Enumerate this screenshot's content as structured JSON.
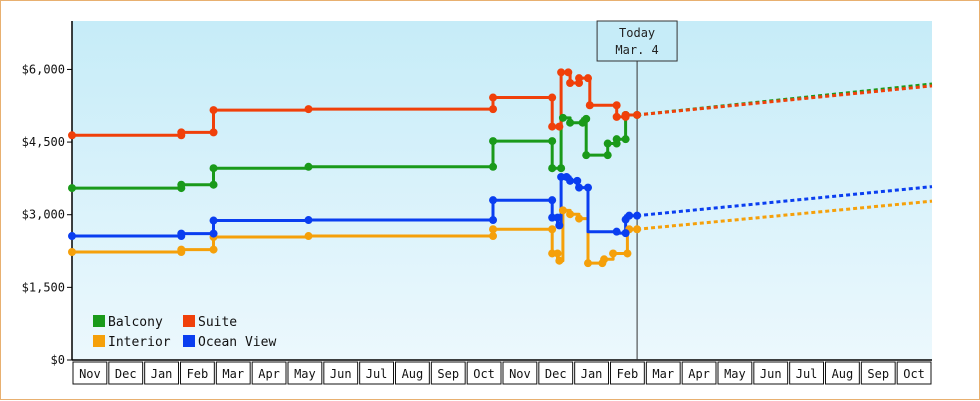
{
  "chart_data": {
    "type": "line",
    "title": "",
    "xlabel": "",
    "ylabel": "",
    "ylim": [
      0,
      7000
    ],
    "y_ticks": [
      {
        "value": 0,
        "label": "$0"
      },
      {
        "value": 1500,
        "label": "$1,500"
      },
      {
        "value": 3000,
        "label": "$3,000"
      },
      {
        "value": 4500,
        "label": "$4,500"
      },
      {
        "value": 6000,
        "label": "$6,000"
      }
    ],
    "x_axis": {
      "unit": "months since Nov of first year",
      "range": [
        0,
        24
      ],
      "labels": [
        "Nov",
        "Dec",
        "Jan",
        "Feb",
        "Mar",
        "Apr",
        "May",
        "Jun",
        "Jul",
        "Aug",
        "Sep",
        "Oct",
        "Nov",
        "Dec",
        "Jan",
        "Feb",
        "Mar",
        "Apr",
        "May",
        "Jun",
        "Jul",
        "Aug",
        "Sep",
        "Oct"
      ]
    },
    "today": {
      "line1": "Today",
      "line2": "Mar. 4",
      "x": 15.77
    },
    "legend": {
      "placement": "bottom-left"
    },
    "series": [
      {
        "name": "Balcony",
        "color": "#1a9a1a",
        "points": [
          [
            0,
            3550
          ],
          [
            3.05,
            3550
          ],
          [
            3.05,
            3620
          ],
          [
            3.95,
            3620
          ],
          [
            3.95,
            3960
          ],
          [
            6.6,
            3960
          ],
          [
            6.6,
            3990
          ],
          [
            11.75,
            3990
          ],
          [
            11.75,
            4520
          ],
          [
            13.4,
            4520
          ],
          [
            13.4,
            3960
          ],
          [
            13.65,
            3960
          ],
          [
            13.65,
            5000
          ],
          [
            13.9,
            5000
          ],
          [
            13.9,
            4900
          ],
          [
            14.25,
            4900
          ],
          [
            14.25,
            4980
          ],
          [
            14.35,
            4980
          ],
          [
            14.35,
            4230
          ],
          [
            14.95,
            4230
          ],
          [
            14.95,
            4470
          ],
          [
            15.2,
            4470
          ],
          [
            15.2,
            4560
          ],
          [
            15.45,
            4560
          ],
          [
            15.45,
            5060
          ],
          [
            15.77,
            5060
          ]
        ],
        "markers": [
          [
            0,
            3550
          ],
          [
            3.05,
            3550
          ],
          [
            3.05,
            3620
          ],
          [
            3.95,
            3620
          ],
          [
            3.95,
            3960
          ],
          [
            6.6,
            3990
          ],
          [
            11.75,
            3990
          ],
          [
            11.75,
            4520
          ],
          [
            13.4,
            4520
          ],
          [
            13.4,
            3960
          ],
          [
            13.65,
            3960
          ],
          [
            13.7,
            5000
          ],
          [
            13.9,
            4900
          ],
          [
            14.25,
            4900
          ],
          [
            14.35,
            4980
          ],
          [
            14.35,
            4230
          ],
          [
            14.95,
            4230
          ],
          [
            14.95,
            4470
          ],
          [
            15.2,
            4470
          ],
          [
            15.2,
            4560
          ],
          [
            15.45,
            4560
          ],
          [
            15.45,
            5060
          ],
          [
            15.77,
            5060
          ]
        ],
        "projection": [
          [
            15.77,
            5060
          ],
          [
            24,
            5700
          ]
        ]
      },
      {
        "name": "Suite",
        "color": "#f0400a",
        "points": [
          [
            0,
            4640
          ],
          [
            3.05,
            4640
          ],
          [
            3.05,
            4700
          ],
          [
            3.95,
            4700
          ],
          [
            3.95,
            5160
          ],
          [
            6.6,
            5160
          ],
          [
            6.6,
            5180
          ],
          [
            11.75,
            5180
          ],
          [
            11.75,
            5420
          ],
          [
            13.4,
            5420
          ],
          [
            13.4,
            4820
          ],
          [
            13.65,
            4820
          ],
          [
            13.65,
            5940
          ],
          [
            13.9,
            5940
          ],
          [
            13.9,
            5720
          ],
          [
            14.15,
            5720
          ],
          [
            14.15,
            5820
          ],
          [
            14.45,
            5820
          ],
          [
            14.45,
            5260
          ],
          [
            15.2,
            5260
          ],
          [
            15.2,
            5020
          ],
          [
            15.45,
            5020
          ],
          [
            15.45,
            5060
          ],
          [
            15.77,
            5060
          ]
        ],
        "markers": [
          [
            0,
            4640
          ],
          [
            3.05,
            4640
          ],
          [
            3.05,
            4700
          ],
          [
            3.95,
            4700
          ],
          [
            3.95,
            5160
          ],
          [
            6.6,
            5180
          ],
          [
            11.75,
            5180
          ],
          [
            11.75,
            5420
          ],
          [
            13.4,
            5420
          ],
          [
            13.4,
            4820
          ],
          [
            13.6,
            4820
          ],
          [
            13.65,
            5940
          ],
          [
            13.85,
            5940
          ],
          [
            13.9,
            5720
          ],
          [
            14.15,
            5720
          ],
          [
            14.15,
            5820
          ],
          [
            14.4,
            5820
          ],
          [
            14.45,
            5260
          ],
          [
            15.2,
            5260
          ],
          [
            15.2,
            5020
          ],
          [
            15.45,
            5020
          ],
          [
            15.45,
            5060
          ],
          [
            15.77,
            5060
          ]
        ],
        "projection": [
          [
            15.77,
            5060
          ],
          [
            24,
            5660
          ]
        ]
      },
      {
        "name": "Interior",
        "color": "#f5a00a",
        "points": [
          [
            0,
            2230
          ],
          [
            3.05,
            2230
          ],
          [
            3.05,
            2280
          ],
          [
            3.95,
            2280
          ],
          [
            3.95,
            2540
          ],
          [
            6.6,
            2540
          ],
          [
            6.6,
            2560
          ],
          [
            11.75,
            2560
          ],
          [
            11.75,
            2700
          ],
          [
            13.4,
            2700
          ],
          [
            13.4,
            2200
          ],
          [
            13.55,
            2200
          ],
          [
            13.55,
            2050
          ],
          [
            13.7,
            2050
          ],
          [
            13.7,
            3090
          ],
          [
            13.9,
            3090
          ],
          [
            13.9,
            3010
          ],
          [
            14.15,
            3010
          ],
          [
            14.15,
            2920
          ],
          [
            14.4,
            2920
          ],
          [
            14.4,
            2000
          ],
          [
            14.8,
            2000
          ],
          [
            14.8,
            2080
          ],
          [
            15.1,
            2080
          ],
          [
            15.1,
            2200
          ],
          [
            15.5,
            2200
          ],
          [
            15.5,
            2700
          ],
          [
            15.77,
            2700
          ]
        ],
        "markers": [
          [
            0,
            2230
          ],
          [
            3.05,
            2230
          ],
          [
            3.05,
            2280
          ],
          [
            3.95,
            2280
          ],
          [
            3.95,
            2540
          ],
          [
            6.6,
            2560
          ],
          [
            11.75,
            2560
          ],
          [
            11.75,
            2700
          ],
          [
            13.4,
            2700
          ],
          [
            13.4,
            2200
          ],
          [
            13.55,
            2200
          ],
          [
            13.6,
            2050
          ],
          [
            13.7,
            3090
          ],
          [
            13.9,
            3010
          ],
          [
            14.15,
            2920
          ],
          [
            14.4,
            2000
          ],
          [
            14.8,
            2000
          ],
          [
            14.85,
            2080
          ],
          [
            15.1,
            2200
          ],
          [
            15.5,
            2200
          ],
          [
            15.55,
            2700
          ],
          [
            15.77,
            2700
          ]
        ],
        "projection": [
          [
            15.77,
            2700
          ],
          [
            24,
            3280
          ]
        ]
      },
      {
        "name": "Ocean View",
        "color": "#0a3ef0",
        "points": [
          [
            0,
            2560
          ],
          [
            3.05,
            2560
          ],
          [
            3.05,
            2610
          ],
          [
            3.95,
            2610
          ],
          [
            3.95,
            2880
          ],
          [
            6.6,
            2880
          ],
          [
            6.6,
            2890
          ],
          [
            11.75,
            2890
          ],
          [
            11.75,
            3300
          ],
          [
            13.4,
            3300
          ],
          [
            13.4,
            2940
          ],
          [
            13.55,
            2940
          ],
          [
            13.55,
            2780
          ],
          [
            13.65,
            2780
          ],
          [
            13.65,
            3780
          ],
          [
            13.9,
            3780
          ],
          [
            13.9,
            3700
          ],
          [
            14.1,
            3700
          ],
          [
            14.1,
            3560
          ],
          [
            14.4,
            3560
          ],
          [
            14.4,
            2650
          ],
          [
            15.2,
            2650
          ],
          [
            15.2,
            2620
          ],
          [
            15.45,
            2620
          ],
          [
            15.45,
            2980
          ],
          [
            15.77,
            2980
          ]
        ],
        "markers": [
          [
            0,
            2560
          ],
          [
            3.05,
            2560
          ],
          [
            3.05,
            2610
          ],
          [
            3.95,
            2610
          ],
          [
            3.95,
            2880
          ],
          [
            6.6,
            2890
          ],
          [
            11.75,
            2890
          ],
          [
            11.75,
            3300
          ],
          [
            13.4,
            3300
          ],
          [
            13.4,
            2940
          ],
          [
            13.55,
            2940
          ],
          [
            13.6,
            2780
          ],
          [
            13.65,
            3780
          ],
          [
            13.8,
            3780
          ],
          [
            13.9,
            3700
          ],
          [
            14.1,
            3700
          ],
          [
            14.15,
            3560
          ],
          [
            14.4,
            3560
          ],
          [
            15.2,
            2650
          ],
          [
            15.45,
            2620
          ],
          [
            15.45,
            2900
          ],
          [
            15.55,
            2980
          ],
          [
            15.77,
            2980
          ]
        ],
        "projection": [
          [
            15.77,
            2980
          ],
          [
            24,
            3580
          ]
        ]
      }
    ]
  }
}
